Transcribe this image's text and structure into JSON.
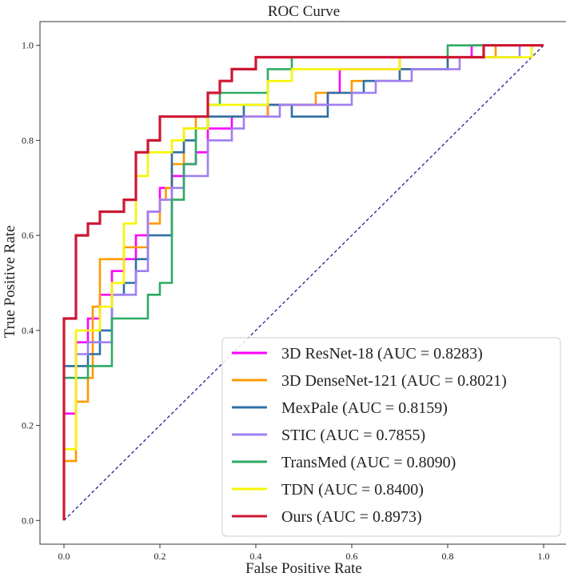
{
  "chart_data": {
    "type": "line",
    "title": "ROC Curve",
    "xlabel": "False Positive Rate",
    "ylabel": "True Positive Rate",
    "xlim": [
      -0.05,
      1.05
    ],
    "ylim": [
      -0.05,
      1.05
    ],
    "xticks": [
      0.0,
      0.2,
      0.4,
      0.6,
      0.8,
      1.0
    ],
    "yticks": [
      0.0,
      0.2,
      0.4,
      0.6,
      0.8,
      1.0
    ],
    "xtick_labels": [
      "0.0",
      "0.2",
      "0.4",
      "0.6",
      "0.8",
      "1.0"
    ],
    "ytick_labels": [
      "0.0",
      "0.2",
      "0.4",
      "0.6",
      "0.8",
      "1.0"
    ],
    "grid": false,
    "legend_position": "bottom-right",
    "diagonal": {
      "name": "chance",
      "color": "#1f1f99",
      "style": "dashed"
    },
    "series": [
      {
        "name": "3D ResNet-18 (AUC = 0.8283)",
        "color": "#ff00ff",
        "points": [
          [
            0,
            0
          ],
          [
            0,
            0.225
          ],
          [
            0.025,
            0.225
          ],
          [
            0.025,
            0.375
          ],
          [
            0.05,
            0.375
          ],
          [
            0.05,
            0.425
          ],
          [
            0.075,
            0.425
          ],
          [
            0.075,
            0.475
          ],
          [
            0.1,
            0.475
          ],
          [
            0.1,
            0.525
          ],
          [
            0.125,
            0.525
          ],
          [
            0.125,
            0.55
          ],
          [
            0.15,
            0.55
          ],
          [
            0.15,
            0.6
          ],
          [
            0.175,
            0.6
          ],
          [
            0.175,
            0.65
          ],
          [
            0.2,
            0.65
          ],
          [
            0.2,
            0.7
          ],
          [
            0.225,
            0.7
          ],
          [
            0.225,
            0.725
          ],
          [
            0.25,
            0.725
          ],
          [
            0.25,
            0.75
          ],
          [
            0.275,
            0.75
          ],
          [
            0.275,
            0.775
          ],
          [
            0.3,
            0.775
          ],
          [
            0.3,
            0.825
          ],
          [
            0.35,
            0.825
          ],
          [
            0.35,
            0.85
          ],
          [
            0.425,
            0.85
          ],
          [
            0.425,
            0.875
          ],
          [
            0.55,
            0.875
          ],
          [
            0.55,
            0.9
          ],
          [
            0.575,
            0.9
          ],
          [
            0.575,
            0.95
          ],
          [
            0.7,
            0.95
          ],
          [
            0.7,
            0.975
          ],
          [
            0.85,
            0.975
          ],
          [
            0.85,
            1.0
          ],
          [
            1.0,
            1.0
          ]
        ]
      },
      {
        "name": "3D DenseNet-121 (AUC = 0.8021)",
        "color": "#ff9900",
        "points": [
          [
            0,
            0
          ],
          [
            0,
            0.125
          ],
          [
            0.025,
            0.125
          ],
          [
            0.025,
            0.25
          ],
          [
            0.05,
            0.25
          ],
          [
            0.05,
            0.3
          ],
          [
            0.06,
            0.3
          ],
          [
            0.06,
            0.45
          ],
          [
            0.075,
            0.45
          ],
          [
            0.075,
            0.55
          ],
          [
            0.125,
            0.55
          ],
          [
            0.125,
            0.575
          ],
          [
            0.175,
            0.575
          ],
          [
            0.175,
            0.625
          ],
          [
            0.2,
            0.625
          ],
          [
            0.2,
            0.675
          ],
          [
            0.2125,
            0.675
          ],
          [
            0.2125,
            0.7
          ],
          [
            0.225,
            0.7
          ],
          [
            0.225,
            0.75
          ],
          [
            0.25,
            0.75
          ],
          [
            0.25,
            0.825
          ],
          [
            0.275,
            0.825
          ],
          [
            0.275,
            0.85
          ],
          [
            0.425,
            0.85
          ],
          [
            0.425,
            0.875
          ],
          [
            0.525,
            0.875
          ],
          [
            0.525,
            0.9
          ],
          [
            0.6,
            0.9
          ],
          [
            0.6,
            0.925
          ],
          [
            0.7,
            0.925
          ],
          [
            0.7,
            0.95
          ],
          [
            0.8,
            0.95
          ],
          [
            0.8,
            0.975
          ],
          [
            0.9,
            0.975
          ],
          [
            0.9,
            1.0
          ],
          [
            1.0,
            1.0
          ]
        ]
      },
      {
        "name": "MexPale (AUC = 0.8159)",
        "color": "#2f6fa6",
        "points": [
          [
            0,
            0
          ],
          [
            0,
            0.325
          ],
          [
            0.05,
            0.325
          ],
          [
            0.05,
            0.35
          ],
          [
            0.075,
            0.35
          ],
          [
            0.075,
            0.4
          ],
          [
            0.1,
            0.4
          ],
          [
            0.1,
            0.475
          ],
          [
            0.125,
            0.475
          ],
          [
            0.125,
            0.5
          ],
          [
            0.15,
            0.5
          ],
          [
            0.15,
            0.55
          ],
          [
            0.175,
            0.55
          ],
          [
            0.175,
            0.6
          ],
          [
            0.225,
            0.6
          ],
          [
            0.225,
            0.775
          ],
          [
            0.25,
            0.775
          ],
          [
            0.25,
            0.8
          ],
          [
            0.275,
            0.8
          ],
          [
            0.275,
            0.825
          ],
          [
            0.3,
            0.825
          ],
          [
            0.3,
            0.85
          ],
          [
            0.375,
            0.85
          ],
          [
            0.375,
            0.875
          ],
          [
            0.475,
            0.875
          ],
          [
            0.475,
            0.85
          ],
          [
            0.55,
            0.85
          ],
          [
            0.55,
            0.9
          ],
          [
            0.625,
            0.9
          ],
          [
            0.625,
            0.925
          ],
          [
            0.7,
            0.925
          ],
          [
            0.7,
            0.95
          ],
          [
            0.8,
            0.95
          ],
          [
            0.8,
            0.975
          ],
          [
            0.875,
            0.975
          ],
          [
            0.875,
            1.0
          ],
          [
            1.0,
            1.0
          ]
        ]
      },
      {
        "name": "STIC (AUC = 0.7855)",
        "color": "#9f7ff0",
        "points": [
          [
            0,
            0
          ],
          [
            0,
            0.3
          ],
          [
            0.025,
            0.3
          ],
          [
            0.025,
            0.35
          ],
          [
            0.05,
            0.35
          ],
          [
            0.05,
            0.375
          ],
          [
            0.1,
            0.375
          ],
          [
            0.1,
            0.475
          ],
          [
            0.15,
            0.475
          ],
          [
            0.15,
            0.525
          ],
          [
            0.175,
            0.525
          ],
          [
            0.175,
            0.65
          ],
          [
            0.2,
            0.65
          ],
          [
            0.2,
            0.675
          ],
          [
            0.225,
            0.675
          ],
          [
            0.225,
            0.7
          ],
          [
            0.25,
            0.7
          ],
          [
            0.25,
            0.725
          ],
          [
            0.3,
            0.725
          ],
          [
            0.3,
            0.8
          ],
          [
            0.35,
            0.8
          ],
          [
            0.35,
            0.825
          ],
          [
            0.375,
            0.825
          ],
          [
            0.375,
            0.85
          ],
          [
            0.45,
            0.85
          ],
          [
            0.45,
            0.875
          ],
          [
            0.6,
            0.875
          ],
          [
            0.6,
            0.9
          ],
          [
            0.65,
            0.9
          ],
          [
            0.65,
            0.925
          ],
          [
            0.725,
            0.925
          ],
          [
            0.725,
            0.95
          ],
          [
            0.825,
            0.95
          ],
          [
            0.825,
            0.975
          ],
          [
            0.95,
            0.975
          ],
          [
            0.95,
            1.0
          ],
          [
            1.0,
            1.0
          ]
        ]
      },
      {
        "name": "TransMed (AUC = 0.8090)",
        "color": "#2eaa62",
        "points": [
          [
            0,
            0
          ],
          [
            0,
            0.3
          ],
          [
            0.05,
            0.3
          ],
          [
            0.05,
            0.325
          ],
          [
            0.1,
            0.325
          ],
          [
            0.1,
            0.425
          ],
          [
            0.175,
            0.425
          ],
          [
            0.175,
            0.475
          ],
          [
            0.2,
            0.475
          ],
          [
            0.2,
            0.5
          ],
          [
            0.225,
            0.5
          ],
          [
            0.225,
            0.675
          ],
          [
            0.25,
            0.675
          ],
          [
            0.25,
            0.75
          ],
          [
            0.275,
            0.75
          ],
          [
            0.275,
            0.825
          ],
          [
            0.3,
            0.825
          ],
          [
            0.3,
            0.875
          ],
          [
            0.325,
            0.875
          ],
          [
            0.325,
            0.9
          ],
          [
            0.425,
            0.9
          ],
          [
            0.425,
            0.95
          ],
          [
            0.475,
            0.95
          ],
          [
            0.475,
            0.975
          ],
          [
            0.8,
            0.975
          ],
          [
            0.8,
            1.0
          ],
          [
            1.0,
            1.0
          ]
        ]
      },
      {
        "name": "TDN (AUC = 0.8400)",
        "color": "#f6f600",
        "points": [
          [
            0,
            0
          ],
          [
            0,
            0.15
          ],
          [
            0.025,
            0.15
          ],
          [
            0.025,
            0.4
          ],
          [
            0.075,
            0.4
          ],
          [
            0.075,
            0.45
          ],
          [
            0.1,
            0.45
          ],
          [
            0.1,
            0.5
          ],
          [
            0.125,
            0.5
          ],
          [
            0.125,
            0.625
          ],
          [
            0.15,
            0.625
          ],
          [
            0.15,
            0.725
          ],
          [
            0.175,
            0.725
          ],
          [
            0.175,
            0.775
          ],
          [
            0.225,
            0.775
          ],
          [
            0.225,
            0.8
          ],
          [
            0.25,
            0.8
          ],
          [
            0.25,
            0.825
          ],
          [
            0.3,
            0.825
          ],
          [
            0.3,
            0.875
          ],
          [
            0.425,
            0.875
          ],
          [
            0.425,
            0.925
          ],
          [
            0.475,
            0.925
          ],
          [
            0.475,
            0.95
          ],
          [
            0.7,
            0.95
          ],
          [
            0.7,
            0.975
          ],
          [
            0.975,
            0.975
          ],
          [
            0.975,
            1.0
          ],
          [
            1.0,
            1.0
          ]
        ]
      },
      {
        "name": "Ours (AUC = 0.8973)",
        "color": "#cc1833",
        "points": [
          [
            0,
            0
          ],
          [
            0,
            0.425
          ],
          [
            0.025,
            0.425
          ],
          [
            0.025,
            0.6
          ],
          [
            0.05,
            0.6
          ],
          [
            0.05,
            0.625
          ],
          [
            0.075,
            0.625
          ],
          [
            0.075,
            0.65
          ],
          [
            0.125,
            0.65
          ],
          [
            0.125,
            0.675
          ],
          [
            0.15,
            0.675
          ],
          [
            0.15,
            0.775
          ],
          [
            0.175,
            0.775
          ],
          [
            0.175,
            0.8
          ],
          [
            0.2,
            0.8
          ],
          [
            0.2,
            0.85
          ],
          [
            0.3,
            0.85
          ],
          [
            0.3,
            0.9
          ],
          [
            0.325,
            0.9
          ],
          [
            0.325,
            0.925
          ],
          [
            0.35,
            0.925
          ],
          [
            0.35,
            0.95
          ],
          [
            0.4,
            0.95
          ],
          [
            0.4,
            0.975
          ],
          [
            0.5,
            0.975
          ],
          [
            0.5,
            0.975
          ],
          [
            0.875,
            0.975
          ],
          [
            0.875,
            1.0
          ],
          [
            1.0,
            1.0
          ]
        ]
      }
    ]
  }
}
